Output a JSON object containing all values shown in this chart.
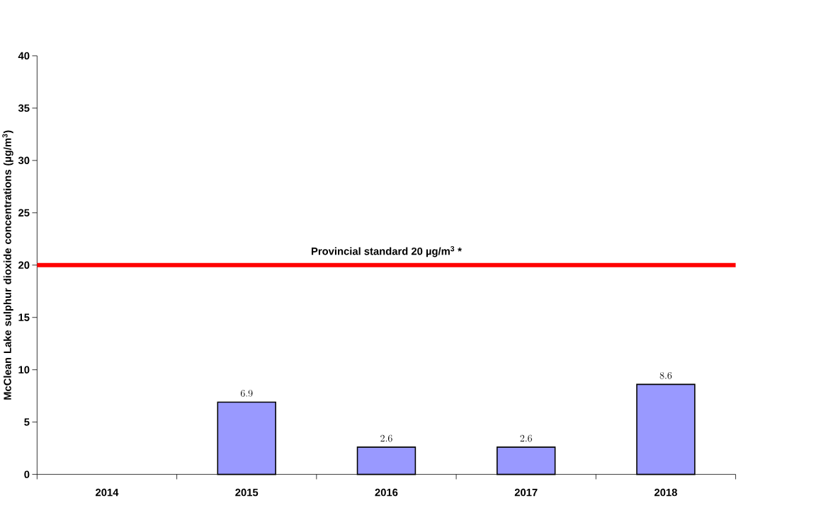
{
  "chart_data": {
    "type": "bar",
    "ylabel": "McClean Lake sulphur dioxide concentrations (µg/m$^{3}$)",
    "categories": [
      "2014",
      "2015",
      "2016",
      "2017",
      "2018"
    ],
    "values": [
      null,
      6.9,
      2.6,
      2.6,
      8.6
    ],
    "color": "#9999ff",
    "data_labels": true,
    "ylim": [
      0,
      40
    ],
    "yticks": [
      0,
      5,
      10,
      15,
      20,
      25,
      30,
      35,
      40
    ],
    "ref_lines": [
      {
        "axis": "y",
        "value": 20,
        "label": "Provincial standard 20 µg/m$^{3}$ *",
        "color": "#ff0000"
      }
    ]
  }
}
